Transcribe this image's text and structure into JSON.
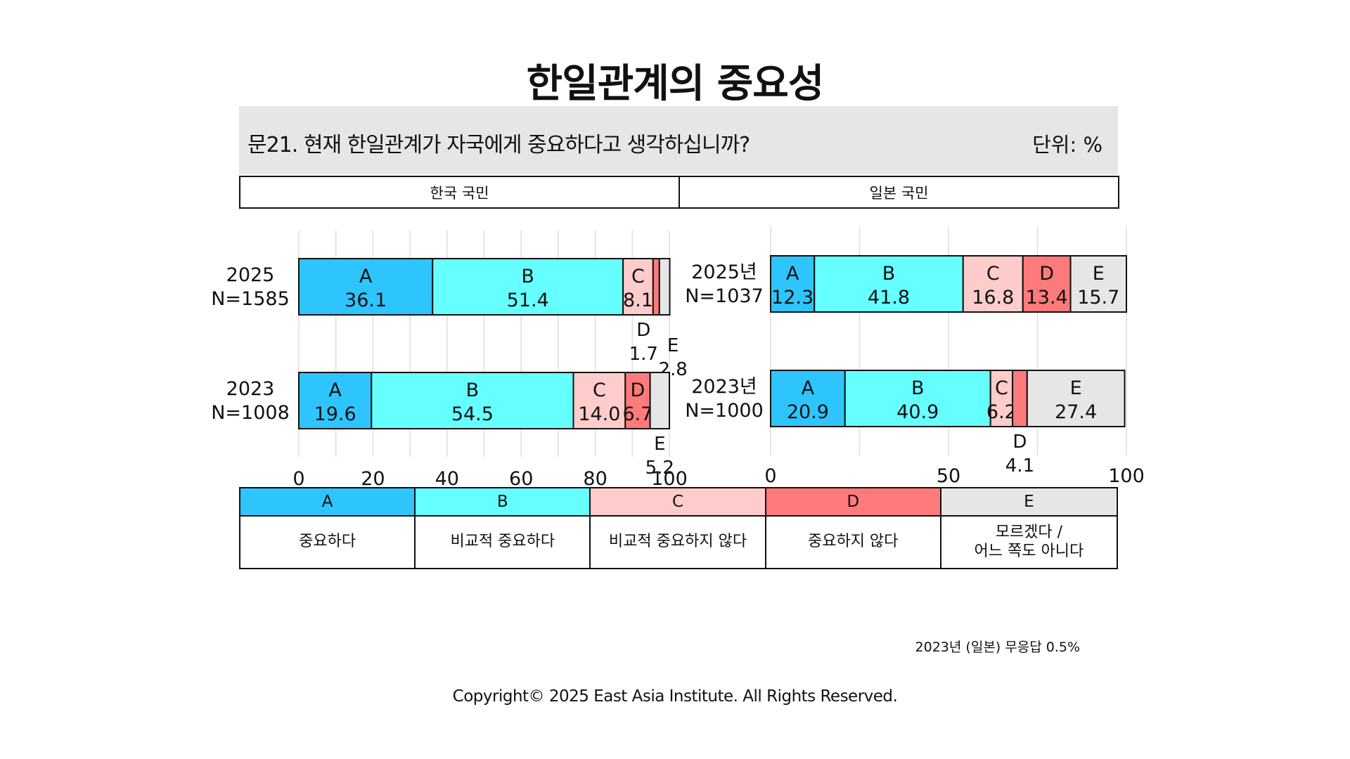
{
  "title": "한일관계의 중요성",
  "question": "문21. 현재 한일관계가 자국에게 중요하다고 생각하십니까?",
  "unit": "단위: %",
  "panels": {
    "left": "한국 국민",
    "right": "일본 국민"
  },
  "colors": {
    "A": "#2ec5ff",
    "B": "#66ffff",
    "C": "#ffcccc",
    "D": "#ff7a7a",
    "E": "#e6e6e6"
  },
  "legend": [
    {
      "key": "A",
      "label": "중요하다"
    },
    {
      "key": "B",
      "label": "비교적 중요하다"
    },
    {
      "key": "C",
      "label": "비교적 중요하지 않다"
    },
    {
      "key": "D",
      "label": "중요하지 않다"
    },
    {
      "key": "E",
      "label": "모르겠다 /\n어느 쪽도 아니다"
    }
  ],
  "note": "2023년 (일본) 무응답 0.5%",
  "copyright": "Copyright© 2025 East Asia Institute. All Rights Reserved.",
  "chart_data": [
    {
      "type": "bar",
      "orientation": "horizontal-stacked",
      "panel": "한국 국민",
      "categories": [
        "A",
        "B",
        "C",
        "D",
        "E"
      ],
      "xlim": [
        0,
        100
      ],
      "xticks": [
        0,
        20,
        40,
        60,
        80,
        100
      ],
      "grid": true,
      "rows": [
        {
          "year": "2025",
          "n": "N=1585",
          "values": [
            36.1,
            51.4,
            8.1,
            1.7,
            2.8
          ]
        },
        {
          "year": "2023",
          "n": "N=1008",
          "values": [
            19.6,
            54.5,
            14.0,
            6.7,
            5.2
          ]
        }
      ]
    },
    {
      "type": "bar",
      "orientation": "horizontal-stacked",
      "panel": "일본 국민",
      "categories": [
        "A",
        "B",
        "C",
        "D",
        "E"
      ],
      "xlim": [
        0,
        100
      ],
      "xticks": [
        0,
        50,
        100
      ],
      "grid": true,
      "rows": [
        {
          "year": "2025년",
          "n": "N=1037",
          "values": [
            12.3,
            41.8,
            16.8,
            13.4,
            15.7
          ]
        },
        {
          "year": "2023년",
          "n": "N=1000",
          "values": [
            20.9,
            40.9,
            6.2,
            4.1,
            27.4
          ]
        }
      ]
    }
  ]
}
